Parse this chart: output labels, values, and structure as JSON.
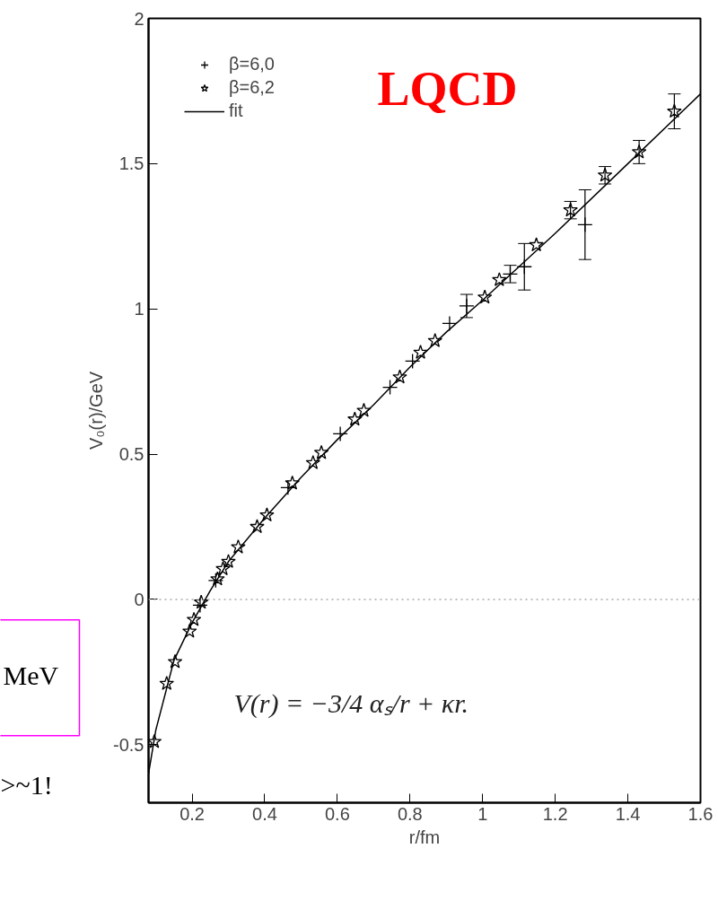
{
  "chart_data": {
    "type": "scatter",
    "xlabel": "r/fm",
    "ylabel": "V₀(r)/GeV",
    "xlim": [
      0.08,
      1.6
    ],
    "ylim": [
      -0.7,
      2
    ],
    "xticks": [
      0.2,
      0.4,
      0.6,
      0.8,
      1,
      1.2,
      1.4,
      1.6
    ],
    "yticks": [
      -0.5,
      0,
      0.5,
      1,
      1.5,
      2
    ],
    "grid": false,
    "legend": "top left",
    "series": [
      {
        "name": "β=6,0",
        "color": "#000000",
        "marker": "cross",
        "x": [
          0.222,
          0.265,
          0.464,
          0.608,
          0.745,
          0.807,
          0.909,
          0.956,
          1.076,
          1.115,
          1.282
        ],
        "values": [
          -0.02,
          0.065,
          0.385,
          0.57,
          0.73,
          0.82,
          0.95,
          1.01,
          1.12,
          1.145,
          1.29
        ],
        "errors": [
          null,
          null,
          null,
          null,
          null,
          null,
          null,
          0.04,
          0.03,
          0.08,
          0.12
        ]
      },
      {
        "name": "β=6,2",
        "color": "#000000",
        "marker": "star",
        "x": [
          0.096,
          0.13,
          0.153,
          0.193,
          0.205,
          0.225,
          0.27,
          0.285,
          0.3,
          0.327,
          0.379,
          0.406,
          0.476,
          0.533,
          0.556,
          0.648,
          0.673,
          0.772,
          0.829,
          0.869,
          1.006,
          1.046,
          1.148,
          1.242,
          1.337,
          1.431,
          1.528
        ],
        "values": [
          -0.49,
          -0.29,
          -0.215,
          -0.11,
          -0.07,
          -0.01,
          0.07,
          0.105,
          0.13,
          0.18,
          0.25,
          0.29,
          0.4,
          0.47,
          0.505,
          0.62,
          0.65,
          0.765,
          0.85,
          0.89,
          1.04,
          1.1,
          1.22,
          1.34,
          1.46,
          1.54,
          1.68
        ],
        "errors": [
          null,
          null,
          null,
          null,
          null,
          null,
          null,
          null,
          null,
          null,
          null,
          null,
          null,
          null,
          null,
          null,
          null,
          null,
          null,
          null,
          null,
          null,
          null,
          0.03,
          0.03,
          0.04,
          0.06
        ]
      },
      {
        "name": "fit",
        "type": "line",
        "color": "#000000",
        "marker": "none",
        "line_style": "solid",
        "x": [
          0.08,
          0.1,
          0.15,
          0.2,
          0.25,
          0.3,
          0.4,
          0.5,
          0.6,
          0.7,
          0.8,
          0.9,
          1.0,
          1.2,
          1.4,
          1.6
        ],
        "values": [
          -0.6,
          -0.45,
          -0.21,
          -0.08,
          0.03,
          0.13,
          0.28,
          0.42,
          0.55,
          0.67,
          0.8,
          0.92,
          1.03,
          1.26,
          1.5,
          1.74
        ]
      }
    ],
    "ref_lines": [
      {
        "axis": "y",
        "value": 0,
        "label": null,
        "color": "#aaaaaa",
        "line_style": "dotted"
      }
    ],
    "annotations": [
      "LQCD",
      "V(r) = −3/4 αₛ/r + κr.",
      "MeV",
      ">~1!"
    ]
  }
}
